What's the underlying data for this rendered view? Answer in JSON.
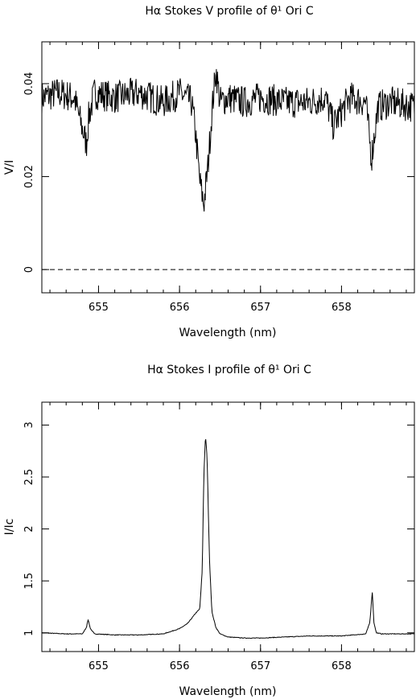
{
  "chart_data": [
    {
      "type": "line",
      "title": "Hα Stokes V profile of θ¹ Ori C",
      "xlabel": "Wavelength (nm)",
      "ylabel": "V/I",
      "xlim": [
        654.3,
        658.9
      ],
      "ylim": [
        -0.005,
        0.049
      ],
      "xticks": [
        655,
        656,
        657,
        658
      ],
      "xtick_labels": [
        "655",
        "656",
        "657",
        "658"
      ],
      "yticks": [
        0,
        0.02,
        0.04
      ],
      "ytick_labels": [
        "0",
        "0.02",
        "0.04"
      ],
      "reference_line": {
        "y": 0,
        "style": "dashed"
      },
      "grid": false,
      "series": [
        {
          "x": [
            654.3,
            654.5,
            654.7,
            654.85,
            654.88,
            654.95,
            655.2,
            655.5,
            655.8,
            656.0,
            656.15,
            656.2,
            656.25,
            656.3,
            656.35,
            656.4,
            656.45,
            656.5,
            656.6,
            656.8,
            657.0,
            657.3,
            657.6,
            657.8,
            657.9,
            658.1,
            658.3,
            658.37,
            658.45,
            658.6,
            658.9
          ],
          "values": [
            0.037,
            0.038,
            0.037,
            0.027,
            0.033,
            0.038,
            0.037,
            0.038,
            0.036,
            0.038,
            0.036,
            0.029,
            0.019,
            0.014,
            0.022,
            0.034,
            0.043,
            0.036,
            0.037,
            0.036,
            0.037,
            0.036,
            0.036,
            0.037,
            0.031,
            0.037,
            0.036,
            0.024,
            0.035,
            0.036,
            0.035
          ]
        }
      ]
    },
    {
      "type": "line",
      "title": "Hα Stokes I profile of θ¹ Ori C",
      "xlabel": "Wavelength (nm)",
      "ylabel": "I/Ic",
      "xlim": [
        654.3,
        658.9
      ],
      "ylim": [
        0.82,
        3.22
      ],
      "xticks": [
        655,
        656,
        657,
        658
      ],
      "xtick_labels": [
        "655",
        "656",
        "657",
        "658"
      ],
      "yticks": [
        1,
        1.5,
        2,
        2.5,
        3
      ],
      "ytick_labels": [
        "1",
        "1.5",
        "2",
        "2.5",
        "3"
      ],
      "grid": false,
      "series": [
        {
          "x": [
            654.3,
            654.6,
            654.8,
            654.85,
            654.87,
            654.9,
            654.95,
            655.2,
            655.5,
            655.8,
            656.0,
            656.1,
            656.15,
            656.2,
            656.25,
            656.28,
            656.3,
            656.32,
            656.34,
            656.37,
            656.4,
            656.45,
            656.5,
            656.6,
            656.8,
            657.0,
            657.3,
            657.6,
            658.0,
            658.3,
            658.35,
            658.38,
            658.4,
            658.43,
            658.5,
            658.9
          ],
          "values": [
            1.0,
            0.99,
            0.99,
            1.05,
            1.13,
            1.04,
            0.99,
            0.98,
            0.98,
            0.99,
            1.04,
            1.09,
            1.14,
            1.19,
            1.23,
            1.6,
            2.5,
            2.9,
            2.7,
            1.7,
            1.2,
            1.05,
            0.99,
            0.96,
            0.95,
            0.95,
            0.96,
            0.97,
            0.97,
            0.99,
            1.1,
            1.4,
            1.1,
            1.0,
            0.99,
            0.99
          ]
        }
      ]
    }
  ]
}
